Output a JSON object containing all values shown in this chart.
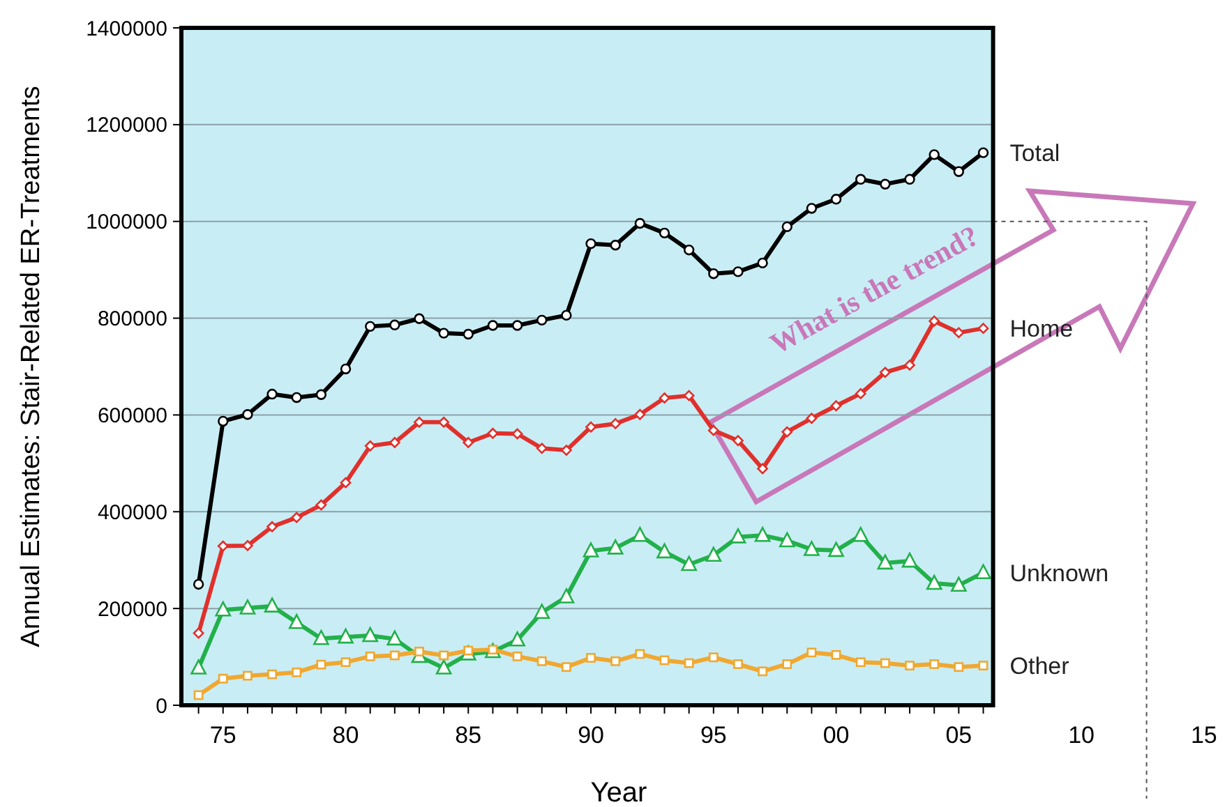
{
  "chart_data": {
    "type": "line",
    "xlabel": "Year",
    "ylabel": "Annual Estimates: Stair-Related ER-Treatments",
    "x": [
      1974,
      1975,
      1976,
      1977,
      1978,
      1979,
      1980,
      1981,
      1982,
      1983,
      1984,
      1985,
      1986,
      1987,
      1988,
      1989,
      1990,
      1991,
      1992,
      1993,
      1994,
      1995,
      1996,
      1997,
      1998,
      1999,
      2000,
      2001,
      2002,
      2003,
      2004,
      2005,
      2006
    ],
    "series": [
      {
        "name": "Total",
        "color": "#000000",
        "marker": "circle",
        "values": [
          250000,
          587000,
          601000,
          643000,
          636000,
          642000,
          695000,
          783000,
          786000,
          799000,
          769000,
          767000,
          785000,
          785000,
          796000,
          806000,
          954000,
          951000,
          996000,
          976000,
          941000,
          892000,
          896000,
          914000,
          989000,
          1027000,
          1046000,
          1087000,
          1077000,
          1087000,
          1138000,
          1103000,
          1142000
        ]
      },
      {
        "name": "Home",
        "color": "#e0302c",
        "marker": "diamond",
        "values": [
          149000,
          329000,
          330000,
          369000,
          388000,
          414000,
          460000,
          536000,
          543000,
          585000,
          585000,
          543000,
          562000,
          561000,
          531000,
          527000,
          575000,
          582000,
          601000,
          635000,
          640000,
          568000,
          547000,
          489000,
          565000,
          593000,
          619000,
          644000,
          688000,
          703000,
          794000,
          770000,
          779000
        ]
      },
      {
        "name": "Unknown",
        "color": "#22b04a",
        "marker": "triangle",
        "values": [
          77000,
          197000,
          201000,
          205000,
          171000,
          138000,
          141000,
          144000,
          137000,
          101000,
          77000,
          106000,
          111000,
          135000,
          192000,
          224000,
          319000,
          325000,
          351000,
          317000,
          291000,
          310000,
          348000,
          351000,
          340000,
          322000,
          320000,
          351000,
          294000,
          298000,
          252000,
          248000,
          274000
        ]
      },
      {
        "name": "Other",
        "color": "#f0a830",
        "marker": "square",
        "values": [
          21000,
          55000,
          61000,
          64000,
          68000,
          84000,
          89000,
          101000,
          103000,
          111000,
          103000,
          113000,
          115000,
          101000,
          91000,
          79000,
          98000,
          91000,
          106000,
          93000,
          87000,
          99000,
          85000,
          70000,
          85000,
          109000,
          104000,
          89000,
          87000,
          82000,
          85000,
          79000,
          82000
        ]
      }
    ],
    "xlim": [
      1973.3,
      2015.8
    ],
    "xticks": [
      {
        "value": 1974,
        "label": null
      },
      {
        "value": 1975,
        "label": "75"
      },
      {
        "value": 1976,
        "label": null
      },
      {
        "value": 1977,
        "label": null
      },
      {
        "value": 1978,
        "label": null
      },
      {
        "value": 1979,
        "label": null
      },
      {
        "value": 1980,
        "label": "80"
      },
      {
        "value": 1981,
        "label": null
      },
      {
        "value": 1982,
        "label": null
      },
      {
        "value": 1983,
        "label": null
      },
      {
        "value": 1984,
        "label": null
      },
      {
        "value": 1985,
        "label": "85"
      },
      {
        "value": 1986,
        "label": null
      },
      {
        "value": 1987,
        "label": null
      },
      {
        "value": 1988,
        "label": null
      },
      {
        "value": 1989,
        "label": null
      },
      {
        "value": 1990,
        "label": "90"
      },
      {
        "value": 1991,
        "label": null
      },
      {
        "value": 1992,
        "label": null
      },
      {
        "value": 1993,
        "label": null
      },
      {
        "value": 1994,
        "label": null
      },
      {
        "value": 1995,
        "label": "95"
      },
      {
        "value": 1996,
        "label": null
      },
      {
        "value": 1997,
        "label": null
      },
      {
        "value": 1998,
        "label": null
      },
      {
        "value": 1999,
        "label": null
      },
      {
        "value": 2000,
        "label": "00"
      },
      {
        "value": 2001,
        "label": null
      },
      {
        "value": 2002,
        "label": null
      },
      {
        "value": 2003,
        "label": null
      },
      {
        "value": 2004,
        "label": null
      },
      {
        "value": 2005,
        "label": "05"
      },
      {
        "value": 2006,
        "label": null
      },
      {
        "value": 2010,
        "label": "10"
      },
      {
        "value": 2015,
        "label": "15"
      }
    ],
    "ylim": [
      0,
      1400000
    ],
    "yticks": [
      0,
      200000,
      400000,
      600000,
      800000,
      1000000,
      1200000,
      1400000
    ],
    "grid": "y",
    "legend": false,
    "line_style": "solid",
    "bands": [
      {
        "axis": "x",
        "from": 1973.3,
        "to": 2006.4,
        "color": "#c9edf5"
      }
    ],
    "annotations": [
      "What is the trend?"
    ]
  }
}
